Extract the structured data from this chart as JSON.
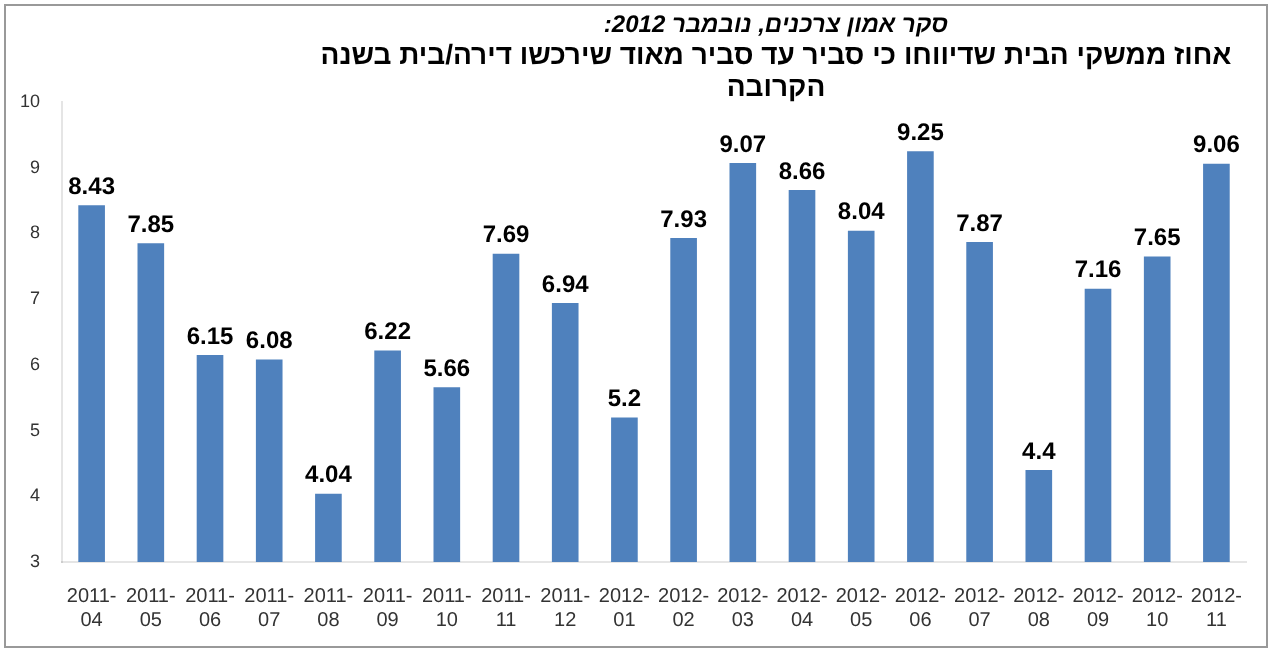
{
  "chart_data": {
    "type": "bar",
    "subtitle": "סקר אמון צרכנים, נובמבר 2012:",
    "title": "אחוז ממשקי הבית שדיווחו כי סביר עד סביר מאוד שירכשו דירה/בית בשנה הקרובה",
    "categories": [
      "2011-04",
      "2011-05",
      "2011-06",
      "2011-07",
      "2011-08",
      "2011-09",
      "2011-10",
      "2011-11",
      "2011-12",
      "2012-01",
      "2012-02",
      "2012-03",
      "2012-04",
      "2012-05",
      "2012-06",
      "2012-07",
      "2012-08",
      "2012-09",
      "2012-10",
      "2012-11"
    ],
    "values": [
      8.43,
      7.85,
      6.15,
      6.08,
      4.04,
      6.22,
      5.66,
      7.69,
      6.94,
      5.2,
      7.93,
      9.07,
      8.66,
      8.04,
      9.25,
      7.87,
      4.4,
      7.16,
      7.65,
      9.06
    ],
    "color": "#4f81bd",
    "ylim": [
      3,
      10
    ],
    "yticks": [
      3,
      4,
      5,
      6,
      7,
      8,
      9,
      10
    ],
    "grid": false,
    "data_labels": true
  }
}
